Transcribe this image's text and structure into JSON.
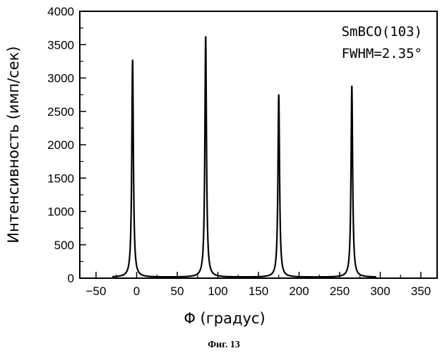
{
  "chart_data": {
    "type": "line",
    "xlabel": "Φ (градус)",
    "ylabel": "Интенсивность (имп/сек)",
    "xlim": [
      -70,
      370
    ],
    "ylim": [
      0,
      4000
    ],
    "xticks": [
      -50,
      0,
      50,
      100,
      150,
      200,
      250,
      300,
      350
    ],
    "yticks": [
      0,
      500,
      1000,
      1500,
      2000,
      2500,
      3000,
      3500,
      4000
    ],
    "grid": false,
    "annotations": [
      "SmBCO(103)",
      "FWHM=2.35°"
    ],
    "peaks": [
      {
        "center": -5,
        "height": 3250
      },
      {
        "center": 85,
        "height": 3600
      },
      {
        "center": 175,
        "height": 2730
      },
      {
        "center": 265,
        "height": 2860
      }
    ],
    "peak_fwhm": 2.35,
    "baseline": 15,
    "line_color": "#000000"
  },
  "caption": "Фиг. 13"
}
